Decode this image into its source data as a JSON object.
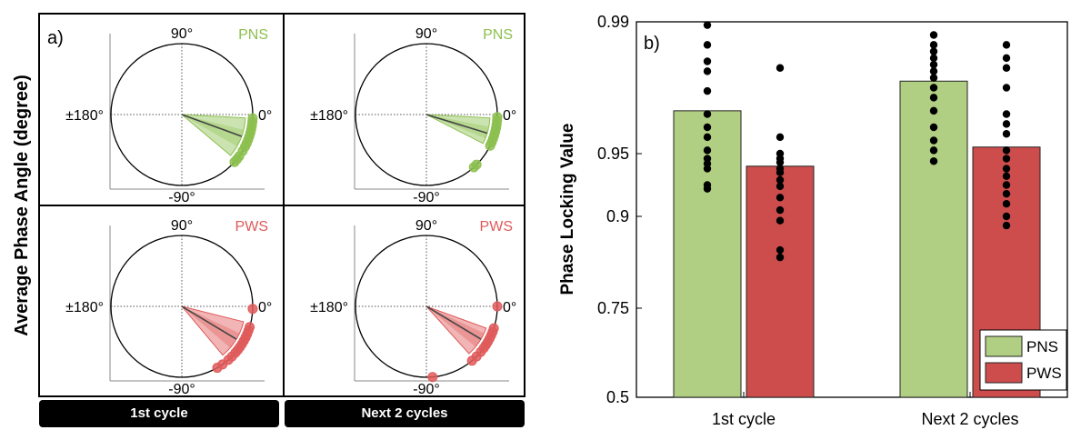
{
  "panel_a": {
    "label": "a)",
    "ylabel": "Average Phase Angle (degree)",
    "angle_labels": {
      "top": "90°",
      "bottom": "-90°",
      "left": "±180°",
      "right": "0°"
    },
    "columns": [
      "1st cycle",
      "Next 2 cycles"
    ],
    "groups": [
      {
        "name": "PNS",
        "color": "#8cc04f"
      },
      {
        "name": "PWS",
        "color": "#e05a5a"
      }
    ]
  },
  "panel_b": {
    "label": "b)",
    "ylabel": "Phase Locking Value",
    "legend": [
      "PNS",
      "PWS"
    ],
    "colors": {
      "PNS": "#b1cf82",
      "PWS": "#cd4d4d"
    }
  },
  "chart_data": [
    {
      "type": "scatter",
      "subtype": "polar",
      "grid": [
        {
          "group": "PNS",
          "column": "1st cycle",
          "mean_angle_deg": -20,
          "spread_deg": [
            -40,
            -3
          ],
          "points_deg": [
            -3,
            -6,
            -9,
            -12,
            -15,
            -18,
            -21,
            -24,
            -27,
            -31,
            -36,
            -39,
            -42
          ]
        },
        {
          "group": "PNS",
          "column": "Next 2 cycles",
          "mean_angle_deg": -17,
          "spread_deg": [
            -27,
            -3
          ],
          "points_deg": [
            -2,
            -5,
            -8,
            -11,
            -14,
            -17,
            -20,
            -23,
            -26,
            -45,
            -48
          ]
        },
        {
          "group": "PWS",
          "column": "1st cycle",
          "mean_angle_deg": -31,
          "spread_deg": [
            -50,
            -14
          ],
          "points_deg": [
            -2,
            -17,
            -20,
            -23,
            -26,
            -29,
            -32,
            -35,
            -38,
            -41,
            -45,
            -49,
            -55,
            -60
          ]
        },
        {
          "group": "PWS",
          "column": "Next 2 cycles",
          "mean_angle_deg": -31,
          "spread_deg": [
            -48,
            -20
          ],
          "points_deg": [
            0,
            -18,
            -21,
            -24,
            -27,
            -30,
            -33,
            -36,
            -40,
            -45,
            -50,
            -85
          ]
        }
      ]
    },
    {
      "type": "bar",
      "title": "",
      "xlabel": "",
      "ylabel": "Phase Locking Value",
      "categories": [
        "1st cycle",
        "Next 2 cycles"
      ],
      "yticks": [
        0.5,
        0.75,
        0.9,
        0.95,
        0.99
      ],
      "ylim": [
        0.5,
        0.99
      ],
      "legend_position": "bottom-right",
      "series": [
        {
          "name": "PNS",
          "values": [
            0.963,
            0.972
          ],
          "points": [
            [
              0.989,
              0.983,
              0.978,
              0.975,
              0.969,
              0.962,
              0.958,
              0.955,
              0.951,
              0.946,
              0.942,
              0.938,
              0.925,
              0.922
            ],
            [
              0.986,
              0.983,
              0.981,
              0.979,
              0.977,
              0.975,
              0.973,
              0.97,
              0.967,
              0.963,
              0.958,
              0.954,
              0.951,
              0.944
            ]
          ]
        },
        {
          "name": "PWS",
          "values": [
            0.94,
            0.952
          ],
          "points": [
            [
              0.976,
              0.955,
              0.95,
              0.946,
              0.943,
              0.938,
              0.935,
              0.929,
              0.924,
              0.915,
              0.905,
              0.893,
              0.845,
              0.833
            ],
            [
              0.983,
              0.979,
              0.976,
              0.97,
              0.962,
              0.959,
              0.956,
              0.951,
              0.946,
              0.938,
              0.932,
              0.925,
              0.918,
              0.91,
              0.9,
              0.885
            ]
          ]
        }
      ]
    }
  ]
}
